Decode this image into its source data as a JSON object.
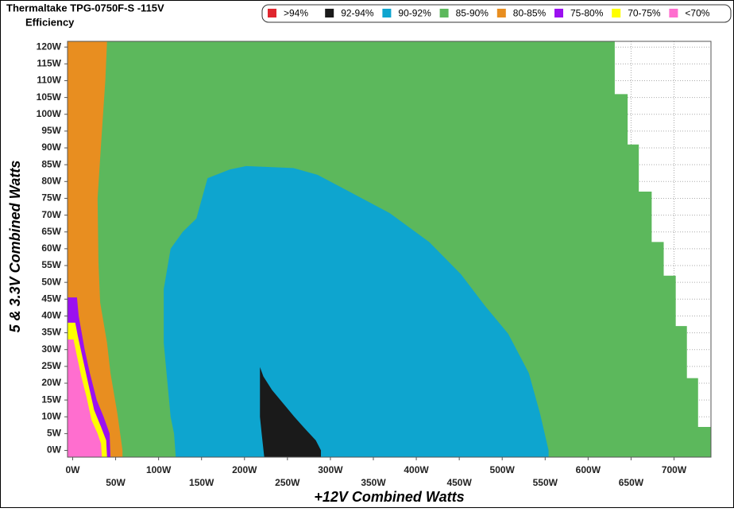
{
  "chart_data": {
    "type": "region",
    "title": "Thermaltake TPG-0750F-S -115V",
    "subtitle": "Efficiency",
    "x_label": "+12V Combined Watts",
    "y_label": "5 & 3.3V Combined Watts",
    "xlim": [
      -6,
      743
    ],
    "ylim": [
      -2,
      121.7
    ],
    "grid": true,
    "xticks": [
      {
        "value": 0,
        "label": "0W"
      },
      {
        "value": 50,
        "label": "50W"
      },
      {
        "value": 100,
        "label": "100W"
      },
      {
        "value": 150,
        "label": "150W"
      },
      {
        "value": 200,
        "label": "200W"
      },
      {
        "value": 250,
        "label": "250W"
      },
      {
        "value": 300,
        "label": "300W"
      },
      {
        "value": 350,
        "label": "350W"
      },
      {
        "value": 400,
        "label": "400W"
      },
      {
        "value": 450,
        "label": "450W"
      },
      {
        "value": 500,
        "label": "500W"
      },
      {
        "value": 550,
        "label": "550W"
      },
      {
        "value": 600,
        "label": "600W"
      },
      {
        "value": 650,
        "label": "650W"
      },
      {
        "value": 700,
        "label": "700W"
      }
    ],
    "yticks": [
      {
        "value": 0,
        "label": "0W"
      },
      {
        "value": 5,
        "label": "5W"
      },
      {
        "value": 10,
        "label": "10W"
      },
      {
        "value": 15,
        "label": "15W"
      },
      {
        "value": 20,
        "label": "20W"
      },
      {
        "value": 25,
        "label": "25W"
      },
      {
        "value": 30,
        "label": "30W"
      },
      {
        "value": 35,
        "label": "35W"
      },
      {
        "value": 40,
        "label": "40W"
      },
      {
        "value": 45,
        "label": "45W"
      },
      {
        "value": 50,
        "label": "50W"
      },
      {
        "value": 55,
        "label": "55W"
      },
      {
        "value": 60,
        "label": "60W"
      },
      {
        "value": 65,
        "label": "65W"
      },
      {
        "value": 70,
        "label": "70W"
      },
      {
        "value": 75,
        "label": "75W"
      },
      {
        "value": 80,
        "label": "80W"
      },
      {
        "value": 85,
        "label": "85W"
      },
      {
        "value": 90,
        "label": "90W"
      },
      {
        "value": 95,
        "label": "95W"
      },
      {
        "value": 100,
        "label": "100W"
      },
      {
        "value": 105,
        "label": "105W"
      },
      {
        "value": 110,
        "label": "110W"
      },
      {
        "value": 115,
        "label": "115W"
      },
      {
        "value": 120,
        "label": "120W"
      }
    ],
    "series": [
      {
        "name": ">94%",
        "color": "#e0262e",
        "x": [],
        "y": []
      },
      {
        "name": "92-94%",
        "color": "#1a1a1a",
        "x": [
          218,
          222,
          232,
          245,
          258,
          272,
          283,
          289,
          289,
          223,
          220,
          218
        ],
        "y": [
          24.8,
          22,
          18,
          14,
          10,
          6,
          3,
          0,
          -2,
          -2,
          5,
          10
        ]
      },
      {
        "name": "90-92%",
        "color": "#0ea5cf",
        "x": [
          120,
          118,
          114,
          106,
          106,
          114,
          128,
          144,
          157,
          183,
          202,
          257,
          285,
          322,
          369,
          415,
          452,
          480,
          507,
          531,
          544,
          554,
          554
        ],
        "y": [
          -2,
          5,
          10,
          32,
          48,
          60,
          65,
          69,
          81,
          83.6,
          84.6,
          84,
          82,
          77,
          70.6,
          62,
          52.4,
          43,
          34.7,
          23,
          11,
          0,
          -2
        ]
      },
      {
        "name": "85-90%",
        "color": "#5cb85c",
        "x": [
          -6,
          -6,
          631,
          631,
          646,
          646,
          659,
          659,
          674,
          674,
          688,
          688,
          702,
          702,
          715,
          715,
          728,
          728,
          743,
          743
        ],
        "y": [
          -2,
          121.7,
          121.7,
          106,
          106,
          91,
          91,
          77,
          77,
          62,
          62,
          52,
          52,
          37,
          37,
          21.5,
          21.5,
          7,
          7,
          -2
        ]
      },
      {
        "name": "80-85%",
        "color": "#e88e20",
        "x": [
          -6,
          -6,
          40,
          38,
          33,
          29,
          30,
          32,
          40,
          44,
          52,
          58,
          58
        ],
        "y": [
          -2,
          121.7,
          121.7,
          110,
          91,
          75,
          56,
          44,
          32,
          23,
          11,
          0,
          -2
        ]
      },
      {
        "name": "75-80%",
        "color": "#9b10f0",
        "x": [
          -6,
          5,
          7,
          14,
          20,
          28,
          36,
          43,
          44,
          -6
        ],
        "y": [
          45.5,
          45.5,
          40,
          30,
          23,
          15,
          10,
          5,
          -2,
          -2
        ]
      },
      {
        "name": "70-75%",
        "color": "#ffff00",
        "x": [
          -6,
          3,
          6,
          12,
          18,
          25,
          33,
          39,
          40,
          -6
        ],
        "y": [
          38,
          38,
          34,
          27,
          20,
          12,
          7,
          3,
          -2,
          -2
        ]
      },
      {
        "name": "<70%",
        "color": "#ff6ecf",
        "x": [
          -6,
          1,
          5,
          10,
          16,
          22,
          29,
          33,
          34,
          -6
        ],
        "y": [
          33,
          33,
          28,
          22,
          16,
          9,
          5,
          2,
          -2,
          -2
        ]
      }
    ]
  }
}
